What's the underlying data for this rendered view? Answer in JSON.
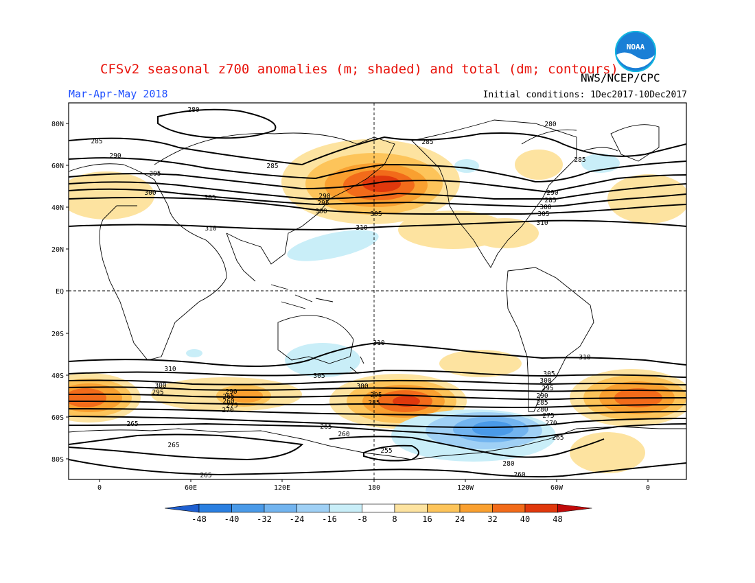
{
  "header": {
    "title": "CFSv2 seasonal z700 anomalies (m; shaded) and total (dm; contours)",
    "agency": "NWS/NCEP/CPC",
    "season": "Mar-Apr-May 2018",
    "initial_conditions": "Initial conditions: 1Dec2017-10Dec2017",
    "logo_text": "NOAA"
  },
  "map": {
    "lat_ticks": [
      "80N",
      "60N",
      "40N",
      "20N",
      "EQ",
      "20S",
      "40S",
      "60S",
      "80S"
    ],
    "lon_ticks": [
      "0",
      "60E",
      "120E",
      "180",
      "120W",
      "60W",
      "0"
    ]
  },
  "colorbar": {
    "labels": [
      "-48",
      "-40",
      "-32",
      "-24",
      "-16",
      "-8",
      "8",
      "16",
      "24",
      "32",
      "40",
      "48"
    ],
    "colors": [
      "#1e5fd0",
      "#2a7fe0",
      "#4a9ae8",
      "#72b4ef",
      "#9fd0f5",
      "#c9eef8",
      "#ffffff",
      "#fde3a0",
      "#fdc45a",
      "#f9a030",
      "#f26b1a",
      "#e0380c",
      "#c00a0a"
    ]
  },
  "contour_labels": {
    "nh": [
      "280",
      "285",
      "290",
      "295",
      "300",
      "305",
      "310",
      "285",
      "290",
      "295",
      "300",
      "280",
      "285",
      "290",
      "285",
      "300",
      "305",
      "310",
      "305",
      "310"
    ],
    "sh": [
      "310",
      "310",
      "310",
      "305",
      "300",
      "295",
      "290",
      "265",
      "260",
      "275",
      "270",
      "300",
      "295",
      "285",
      "305",
      "300",
      "295",
      "290",
      "285",
      "280",
      "275",
      "270",
      "265",
      "265",
      "265",
      "260",
      "255",
      "280",
      "265",
      "260",
      "265"
    ]
  }
}
